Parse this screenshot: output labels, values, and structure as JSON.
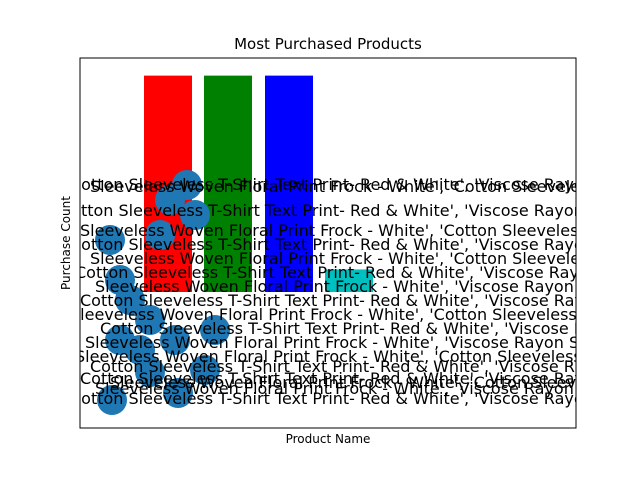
{
  "chart_data": {
    "type": "bar",
    "title": "Most Purchased Products",
    "xlabel": "Product Name",
    "ylabel": "Purchase Count",
    "grid": false,
    "bars": [
      {
        "color": "#ff0000",
        "value": 1.0
      },
      {
        "color": "#008000",
        "value": 1.0
      },
      {
        "color": "#0000ff",
        "value": 1.0
      },
      {
        "color": "#00bfbf",
        "value": 0.45
      }
    ],
    "ylim": [
      0,
      1.05
    ],
    "marker_color": "#1f77b4",
    "overlapping_text_labels": [
      "Cotton Sleeveless T-Shirt Text Print- Red & White', 'Viscose Rayon Singlet",
      "Sleeveless Woven Floral Print Frock - White', 'Cotton Sleeveless T-Shirt Text Print- Red & White', 'Viscose Rayon Singlet",
      "Cotton Sleeveless T-Shirt Text Print- Red & White', 'Viscose Rayon Singlet'",
      "Sleeveless Woven Floral Print Frock - White', 'Viscose Rayon Singlet"
    ]
  }
}
